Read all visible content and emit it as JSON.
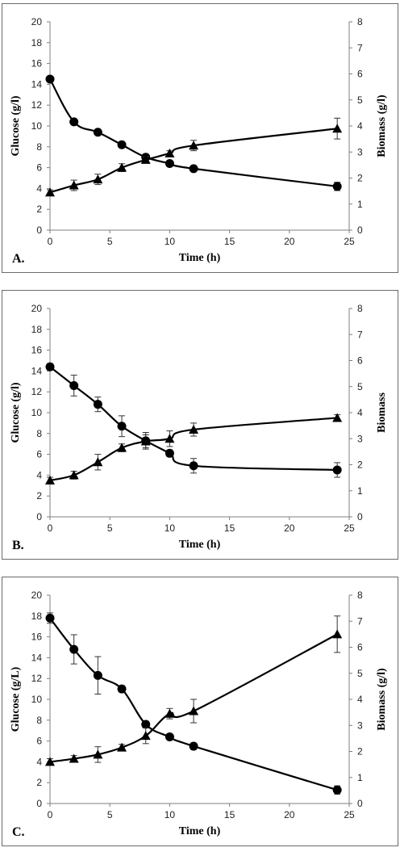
{
  "chart_data": [
    {
      "type": "line",
      "panel_label": "A.",
      "xlabel": "Time (h)",
      "ylabel": "Glucose (g/l)",
      "y2label": "Biomass (g/l)",
      "xlim": [
        0,
        25
      ],
      "ylim": [
        0,
        20
      ],
      "y2lim": [
        0,
        8
      ],
      "xticks": [
        "0",
        "5",
        "10",
        "15",
        "20",
        "25"
      ],
      "yticks": [
        "0",
        "2",
        "4",
        "6",
        "8",
        "10",
        "12",
        "14",
        "16",
        "18",
        "20"
      ],
      "y2ticks": [
        "0",
        "1",
        "2",
        "3",
        "4",
        "5",
        "6",
        "7",
        "8"
      ],
      "series": [
        {
          "marker": "circle",
          "axis": "left",
          "x": [
            0,
            2,
            4,
            6,
            8,
            10,
            12,
            24
          ],
          "y": [
            14.5,
            10.4,
            9.4,
            8.2,
            7.0,
            6.4,
            5.9,
            4.2
          ],
          "err": [
            0.2,
            0.2,
            0.2,
            0.2,
            0.2,
            0.2,
            0.2,
            0.4
          ]
        },
        {
          "marker": "triangle",
          "axis": "right",
          "x": [
            0,
            2,
            4,
            6,
            8,
            10,
            12,
            24
          ],
          "y": [
            1.45,
            1.72,
            1.95,
            2.4,
            2.7,
            2.95,
            3.25,
            3.9
          ],
          "err": [
            0.1,
            0.2,
            0.2,
            0.15,
            0.12,
            0.1,
            0.2,
            0.4
          ]
        }
      ]
    },
    {
      "type": "line",
      "panel_label": "B.",
      "xlabel": "Time (h)",
      "ylabel": "Glucose (g/l)",
      "y2label": "Biomass",
      "xlim": [
        0,
        25
      ],
      "ylim": [
        0,
        20
      ],
      "y2lim": [
        0,
        8
      ],
      "xticks": [
        "0",
        "5",
        "10",
        "15",
        "20",
        "25"
      ],
      "yticks": [
        "0",
        "2",
        "4",
        "6",
        "8",
        "10",
        "12",
        "14",
        "16",
        "18",
        "20"
      ],
      "y2ticks": [
        "0",
        "1",
        "2",
        "3",
        "4",
        "5",
        "6",
        "7",
        "8"
      ],
      "series": [
        {
          "marker": "circle",
          "axis": "left",
          "x": [
            0,
            2,
            4,
            6,
            8,
            10,
            12,
            24
          ],
          "y": [
            14.4,
            12.6,
            10.8,
            8.7,
            7.3,
            6.1,
            4.9,
            4.5
          ],
          "err": [
            0.3,
            1.0,
            0.7,
            1.0,
            0.8,
            0.3,
            0.7,
            0.7
          ]
        },
        {
          "marker": "triangle",
          "axis": "right",
          "x": [
            0,
            2,
            4,
            6,
            8,
            10,
            12,
            24
          ],
          "y": [
            1.4,
            1.6,
            2.1,
            2.65,
            2.9,
            3.0,
            3.35,
            3.8
          ],
          "err": [
            0.12,
            0.15,
            0.3,
            0.15,
            0.25,
            0.3,
            0.25,
            0.12
          ]
        }
      ]
    },
    {
      "type": "line",
      "panel_label": "C.",
      "xlabel": "Time (h)",
      "ylabel": "Glucose (g/L)",
      "y2label": "Biomass (g/l)",
      "xlim": [
        0,
        25
      ],
      "ylim": [
        0,
        20
      ],
      "y2lim": [
        0,
        8
      ],
      "xticks": [
        "0",
        "5",
        "10",
        "15",
        "20",
        "25"
      ],
      "yticks": [
        "0",
        "2",
        "4",
        "6",
        "8",
        "10",
        "12",
        "14",
        "16",
        "18",
        "20"
      ],
      "y2ticks": [
        "0",
        "1",
        "2",
        "3",
        "4",
        "5",
        "6",
        "7",
        "8"
      ],
      "series": [
        {
          "marker": "circle",
          "axis": "left",
          "x": [
            0,
            2,
            4,
            6,
            8,
            10,
            12,
            24
          ],
          "y": [
            17.8,
            14.8,
            12.3,
            11.0,
            7.6,
            6.4,
            5.5,
            1.3
          ],
          "err": [
            0.5,
            1.4,
            1.8,
            0.3,
            0.3,
            0.2,
            0.3,
            0.4
          ]
        },
        {
          "marker": "triangle",
          "axis": "right",
          "x": [
            0,
            2,
            4,
            6,
            8,
            10,
            12,
            24
          ],
          "y": [
            1.6,
            1.72,
            1.88,
            2.15,
            2.6,
            3.45,
            3.55,
            6.5
          ],
          "err": [
            0.12,
            0.12,
            0.3,
            0.12,
            0.3,
            0.2,
            0.45,
            0.7
          ]
        }
      ]
    }
  ]
}
